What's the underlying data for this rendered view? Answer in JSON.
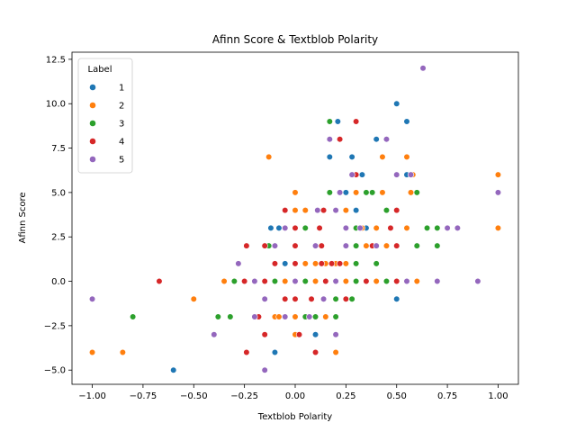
{
  "chart_data": {
    "type": "scatter",
    "title": "Afinn Score & Textblob Polarity",
    "xlabel": "Textblob Polarity",
    "ylabel": "Afinn Score",
    "xlim": [
      -1.1,
      1.1
    ],
    "ylim": [
      -5.8,
      12.9
    ],
    "xticks": [
      -1.0,
      -0.75,
      -0.5,
      -0.25,
      0.0,
      0.25,
      0.5,
      0.75,
      1.0
    ],
    "xtick_labels": [
      "−1.00",
      "−0.75",
      "−0.50",
      "−0.25",
      "0.00",
      "0.25",
      "0.50",
      "0.75",
      "1.00"
    ],
    "yticks": [
      -5.0,
      -2.5,
      0.0,
      2.5,
      5.0,
      7.5,
      10.0,
      12.5
    ],
    "ytick_labels": [
      "−5.0",
      "−2.5",
      "0.0",
      "2.5",
      "5.0",
      "7.5",
      "10.0",
      "12.5"
    ],
    "grid": false,
    "legend": {
      "title": "Label",
      "position": "top-left"
    },
    "series": [
      {
        "name": "1",
        "color": "#1f77b4",
        "points": [
          [
            -0.6,
            -5
          ],
          [
            -0.1,
            -4
          ],
          [
            0.1,
            -3
          ],
          [
            0.1,
            -2
          ],
          [
            0.5,
            -1
          ],
          [
            0.0,
            0
          ],
          [
            0.1,
            0
          ],
          [
            0.2,
            0
          ],
          [
            0.3,
            0
          ],
          [
            0.4,
            0
          ],
          [
            0.5,
            0
          ],
          [
            -0.05,
            1
          ],
          [
            0.25,
            1
          ],
          [
            0.35,
            2
          ],
          [
            0.6,
            2
          ],
          [
            -0.12,
            3
          ],
          [
            -0.08,
            3
          ],
          [
            0.25,
            3
          ],
          [
            0.35,
            3
          ],
          [
            0.65,
            3
          ],
          [
            0.3,
            4
          ],
          [
            0.25,
            5
          ],
          [
            0.3,
            5
          ],
          [
            0.33,
            6
          ],
          [
            0.55,
            6
          ],
          [
            0.17,
            7
          ],
          [
            0.28,
            7
          ],
          [
            0.4,
            8
          ],
          [
            0.21,
            9
          ],
          [
            0.55,
            9
          ],
          [
            0.5,
            10
          ]
        ]
      },
      {
        "name": "2",
        "color": "#ff7f0e",
        "points": [
          [
            -1.0,
            -4
          ],
          [
            -0.85,
            -4
          ],
          [
            -0.5,
            -1
          ],
          [
            -0.35,
            0
          ],
          [
            -0.3,
            0
          ],
          [
            -0.25,
            0
          ],
          [
            -0.2,
            0
          ],
          [
            -0.15,
            0
          ],
          [
            -0.1,
            0
          ],
          [
            -0.05,
            0
          ],
          [
            0.0,
            0
          ],
          [
            0.05,
            0
          ],
          [
            0.1,
            0
          ],
          [
            0.15,
            0
          ],
          [
            0.2,
            0
          ],
          [
            0.25,
            0
          ],
          [
            0.3,
            0
          ],
          [
            0.35,
            0
          ],
          [
            0.4,
            0
          ],
          [
            0.45,
            0
          ],
          [
            0.5,
            0
          ],
          [
            0.6,
            0
          ],
          [
            -0.1,
            -2
          ],
          [
            -0.08,
            -2
          ],
          [
            0.0,
            -2
          ],
          [
            0.15,
            -2
          ],
          [
            0.0,
            -3
          ],
          [
            0.2,
            -4
          ],
          [
            0.05,
            1
          ],
          [
            0.1,
            1
          ],
          [
            0.15,
            1
          ],
          [
            0.2,
            1
          ],
          [
            0.25,
            1
          ],
          [
            0.3,
            2
          ],
          [
            0.35,
            2
          ],
          [
            0.4,
            2
          ],
          [
            0.45,
            2
          ],
          [
            0.0,
            4
          ],
          [
            0.05,
            4
          ],
          [
            0.25,
            4
          ],
          [
            0.33,
            3
          ],
          [
            0.4,
            3
          ],
          [
            0.55,
            3
          ],
          [
            0.0,
            5
          ],
          [
            0.3,
            5
          ],
          [
            0.43,
            5
          ],
          [
            0.57,
            5
          ],
          [
            -0.13,
            7
          ],
          [
            0.43,
            7
          ],
          [
            0.55,
            7
          ],
          [
            0.58,
            6
          ],
          [
            1.0,
            6
          ],
          [
            1.0,
            3
          ]
        ]
      },
      {
        "name": "3",
        "color": "#2ca02c",
        "points": [
          [
            -0.8,
            -2
          ],
          [
            -0.38,
            -2
          ],
          [
            -0.32,
            -2
          ],
          [
            -0.3,
            0
          ],
          [
            -0.1,
            0
          ],
          [
            0.05,
            0
          ],
          [
            0.2,
            0
          ],
          [
            0.3,
            0
          ],
          [
            0.45,
            0
          ],
          [
            0.05,
            -2
          ],
          [
            0.1,
            -2
          ],
          [
            0.2,
            -2
          ],
          [
            0.2,
            -1
          ],
          [
            0.28,
            -1
          ],
          [
            0.3,
            1
          ],
          [
            0.4,
            1
          ],
          [
            -0.13,
            2
          ],
          [
            0.3,
            2
          ],
          [
            0.6,
            2
          ],
          [
            0.7,
            2
          ],
          [
            0.05,
            3
          ],
          [
            0.3,
            3
          ],
          [
            0.65,
            3
          ],
          [
            0.7,
            3
          ],
          [
            0.17,
            5
          ],
          [
            0.35,
            5
          ],
          [
            0.38,
            5
          ],
          [
            0.6,
            5
          ],
          [
            0.45,
            4
          ],
          [
            0.17,
            9
          ]
        ]
      },
      {
        "name": "4",
        "color": "#d62728",
        "points": [
          [
            -0.67,
            0
          ],
          [
            -0.24,
            -4
          ],
          [
            -0.15,
            -3
          ],
          [
            0.1,
            -4
          ],
          [
            0.02,
            -3
          ],
          [
            -0.18,
            -2
          ],
          [
            -0.05,
            -1
          ],
          [
            0.0,
            -1
          ],
          [
            0.08,
            -1
          ],
          [
            0.25,
            -1
          ],
          [
            -0.25,
            0
          ],
          [
            -0.2,
            0
          ],
          [
            -0.15,
            0
          ],
          [
            0.0,
            0
          ],
          [
            0.15,
            0
          ],
          [
            0.35,
            0
          ],
          [
            0.5,
            0
          ],
          [
            -0.1,
            1
          ],
          [
            0.0,
            1
          ],
          [
            0.13,
            1
          ],
          [
            0.18,
            1
          ],
          [
            0.22,
            1
          ],
          [
            -0.24,
            2
          ],
          [
            -0.15,
            2
          ],
          [
            0.0,
            2
          ],
          [
            0.13,
            2
          ],
          [
            0.38,
            2
          ],
          [
            0.5,
            2
          ],
          [
            0.0,
            3
          ],
          [
            0.12,
            3
          ],
          [
            0.47,
            3
          ],
          [
            -0.05,
            4
          ],
          [
            0.14,
            4
          ],
          [
            0.5,
            4
          ],
          [
            0.3,
            6
          ],
          [
            0.22,
            8
          ],
          [
            0.3,
            9
          ]
        ]
      },
      {
        "name": "5",
        "color": "#9467bd",
        "points": [
          [
            -1.0,
            -1
          ],
          [
            -0.4,
            -3
          ],
          [
            -0.2,
            -2
          ],
          [
            -0.15,
            -1
          ],
          [
            -0.15,
            -5
          ],
          [
            -0.05,
            -2
          ],
          [
            0.07,
            -2
          ],
          [
            0.2,
            -3
          ],
          [
            0.14,
            -1
          ],
          [
            -0.28,
            1
          ],
          [
            -0.2,
            0
          ],
          [
            0.0,
            0
          ],
          [
            0.2,
            0
          ],
          [
            0.55,
            0
          ],
          [
            0.7,
            0
          ],
          [
            0.9,
            0
          ],
          [
            -0.1,
            2
          ],
          [
            0.1,
            2
          ],
          [
            0.25,
            2
          ],
          [
            0.4,
            2
          ],
          [
            -0.05,
            3
          ],
          [
            0.25,
            3
          ],
          [
            0.32,
            3
          ],
          [
            0.75,
            3
          ],
          [
            0.8,
            3
          ],
          [
            0.11,
            4
          ],
          [
            0.2,
            4
          ],
          [
            0.22,
            5
          ],
          [
            0.28,
            6
          ],
          [
            0.5,
            6
          ],
          [
            0.57,
            6
          ],
          [
            1.0,
            5
          ],
          [
            0.17,
            8
          ],
          [
            0.45,
            8
          ],
          [
            0.63,
            12
          ]
        ]
      }
    ]
  }
}
